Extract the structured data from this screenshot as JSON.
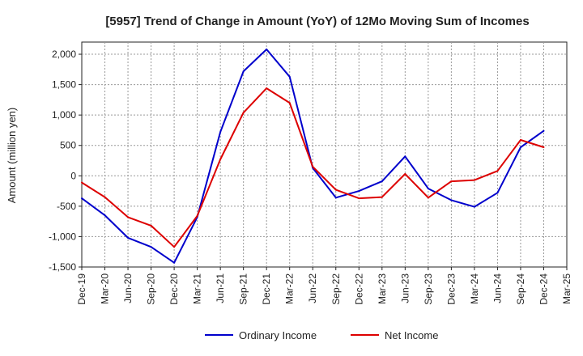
{
  "chart_data": {
    "type": "line",
    "title": "[5957]  Trend of Change in Amount (YoY) of 12Mo Moving Sum of Incomes",
    "xlabel": "",
    "ylabel": "Amount (million yen)",
    "ylim": [
      -1500,
      2200
    ],
    "yticks": [
      2000,
      1500,
      1000,
      500,
      0,
      -500,
      -1000,
      -1500
    ],
    "ytick_labels": [
      "2,000",
      "1,500",
      "1,000",
      "500",
      "0",
      "-500",
      "-1,000",
      "-1,500"
    ],
    "categories": [
      "Dec-19",
      "Mar-20",
      "Jun-20",
      "Sep-20",
      "Dec-20",
      "Mar-21",
      "Jun-21",
      "Sep-21",
      "Dec-21",
      "Mar-22",
      "Jun-22",
      "Sep-22",
      "Dec-22",
      "Mar-23",
      "Jun-23",
      "Sep-23",
      "Dec-23",
      "Mar-24",
      "Jun-24",
      "Sep-24",
      "Dec-24",
      "Mar-25"
    ],
    "grid": true,
    "legend_position": "bottom",
    "series": [
      {
        "name": "Ordinary Income",
        "color": "#0000cc",
        "values": [
          -370,
          -650,
          -1020,
          -1170,
          -1430,
          -680,
          720,
          1720,
          2080,
          1630,
          130,
          -360,
          -250,
          -90,
          320,
          -210,
          -400,
          -510,
          -280,
          470,
          740,
          null
        ]
      },
      {
        "name": "Net Income",
        "color": "#dd0000",
        "values": [
          -110,
          -350,
          -680,
          -820,
          -1170,
          -660,
          270,
          1040,
          1440,
          1200,
          150,
          -230,
          -370,
          -350,
          30,
          -360,
          -90,
          -70,
          80,
          590,
          470,
          null
        ]
      }
    ]
  }
}
